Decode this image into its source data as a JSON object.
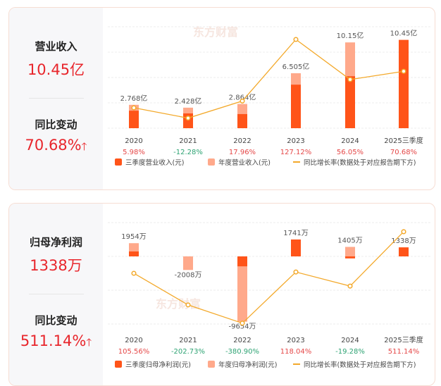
{
  "colors": {
    "q3": "#ff5419",
    "annual": "#ffa98b",
    "line": "#f3a92b",
    "up": "#e54848",
    "down": "#2ea373",
    "watermark": "#f6e6e0"
  },
  "watermark": "东方财富",
  "revenue": {
    "title": "营业收入",
    "value": "10.45亿",
    "change_label": "同比变动",
    "change_value": "70.68%",
    "arrow": "🡑"
  },
  "profit": {
    "title": "归母净利润",
    "value": "1338万",
    "change_label": "同比变动",
    "change_value": "511.14%",
    "arrow": "🡑"
  },
  "chart_data": [
    {
      "type": "bar+line",
      "unit": "亿",
      "categories": [
        "2020",
        "2021",
        "2022",
        "2023",
        "2024",
        "2025三季度"
      ],
      "series": [
        {
          "name": "三季度营业收入(元)",
          "values": [
            2.07,
            1.75,
            1.67,
            5.15,
            6.15,
            10.45
          ]
        },
        {
          "name": "年度营业收入(元)",
          "values": [
            2.768,
            2.428,
            2.864,
            6.505,
            10.15,
            null
          ]
        },
        {
          "name": "同比增长率(数据处于对应报告期下方)",
          "values": [
            5.98,
            -12.28,
            17.96,
            127.12,
            56.05,
            70.68
          ]
        }
      ],
      "value_labels": [
        "2.768亿",
        "2.428亿",
        "2.864亿",
        "6.505亿",
        "10.15亿",
        "10.45亿"
      ],
      "growth_labels": [
        "5.98%",
        "-12.28%",
        "17.96%",
        "127.12%",
        "56.05%",
        "70.68%"
      ],
      "ylim": [
        0,
        12
      ],
      "y2lim": [
        -30.2,
        149.6
      ],
      "grid": true,
      "legend": "bottom"
    },
    {
      "type": "bar+line",
      "unit": "万",
      "categories": [
        "2020",
        "2021",
        "2022",
        "2023",
        "2024",
        "2025三季度"
      ],
      "series": [
        {
          "name": "三季度归母净利润(元)",
          "values": [
            730,
            0,
            -1470,
            2500,
            -300,
            1338
          ]
        },
        {
          "name": "年度归母净利润(元)",
          "values": [
            1954,
            -2008,
            -9654,
            1741,
            1405,
            null
          ]
        },
        {
          "name": "同比增长率(数据处于对应报告期下方)",
          "values": [
            105.56,
            -202.73,
            -380.9,
            118.04,
            -19.28,
            511.14
          ]
        }
      ],
      "value_labels": [
        "1954万",
        "-2008万",
        "-9654万",
        "1741万",
        "1405万",
        "1338万"
      ],
      "growth_labels": [
        "105.56%",
        "-202.73%",
        "-380.90%",
        "118.04%",
        "-19.28%",
        "511.14%"
      ],
      "ylim": [
        -10000,
        5000
      ],
      "y2lim": [
        -389,
        600
      ],
      "grid": true,
      "legend": "bottom"
    }
  ]
}
